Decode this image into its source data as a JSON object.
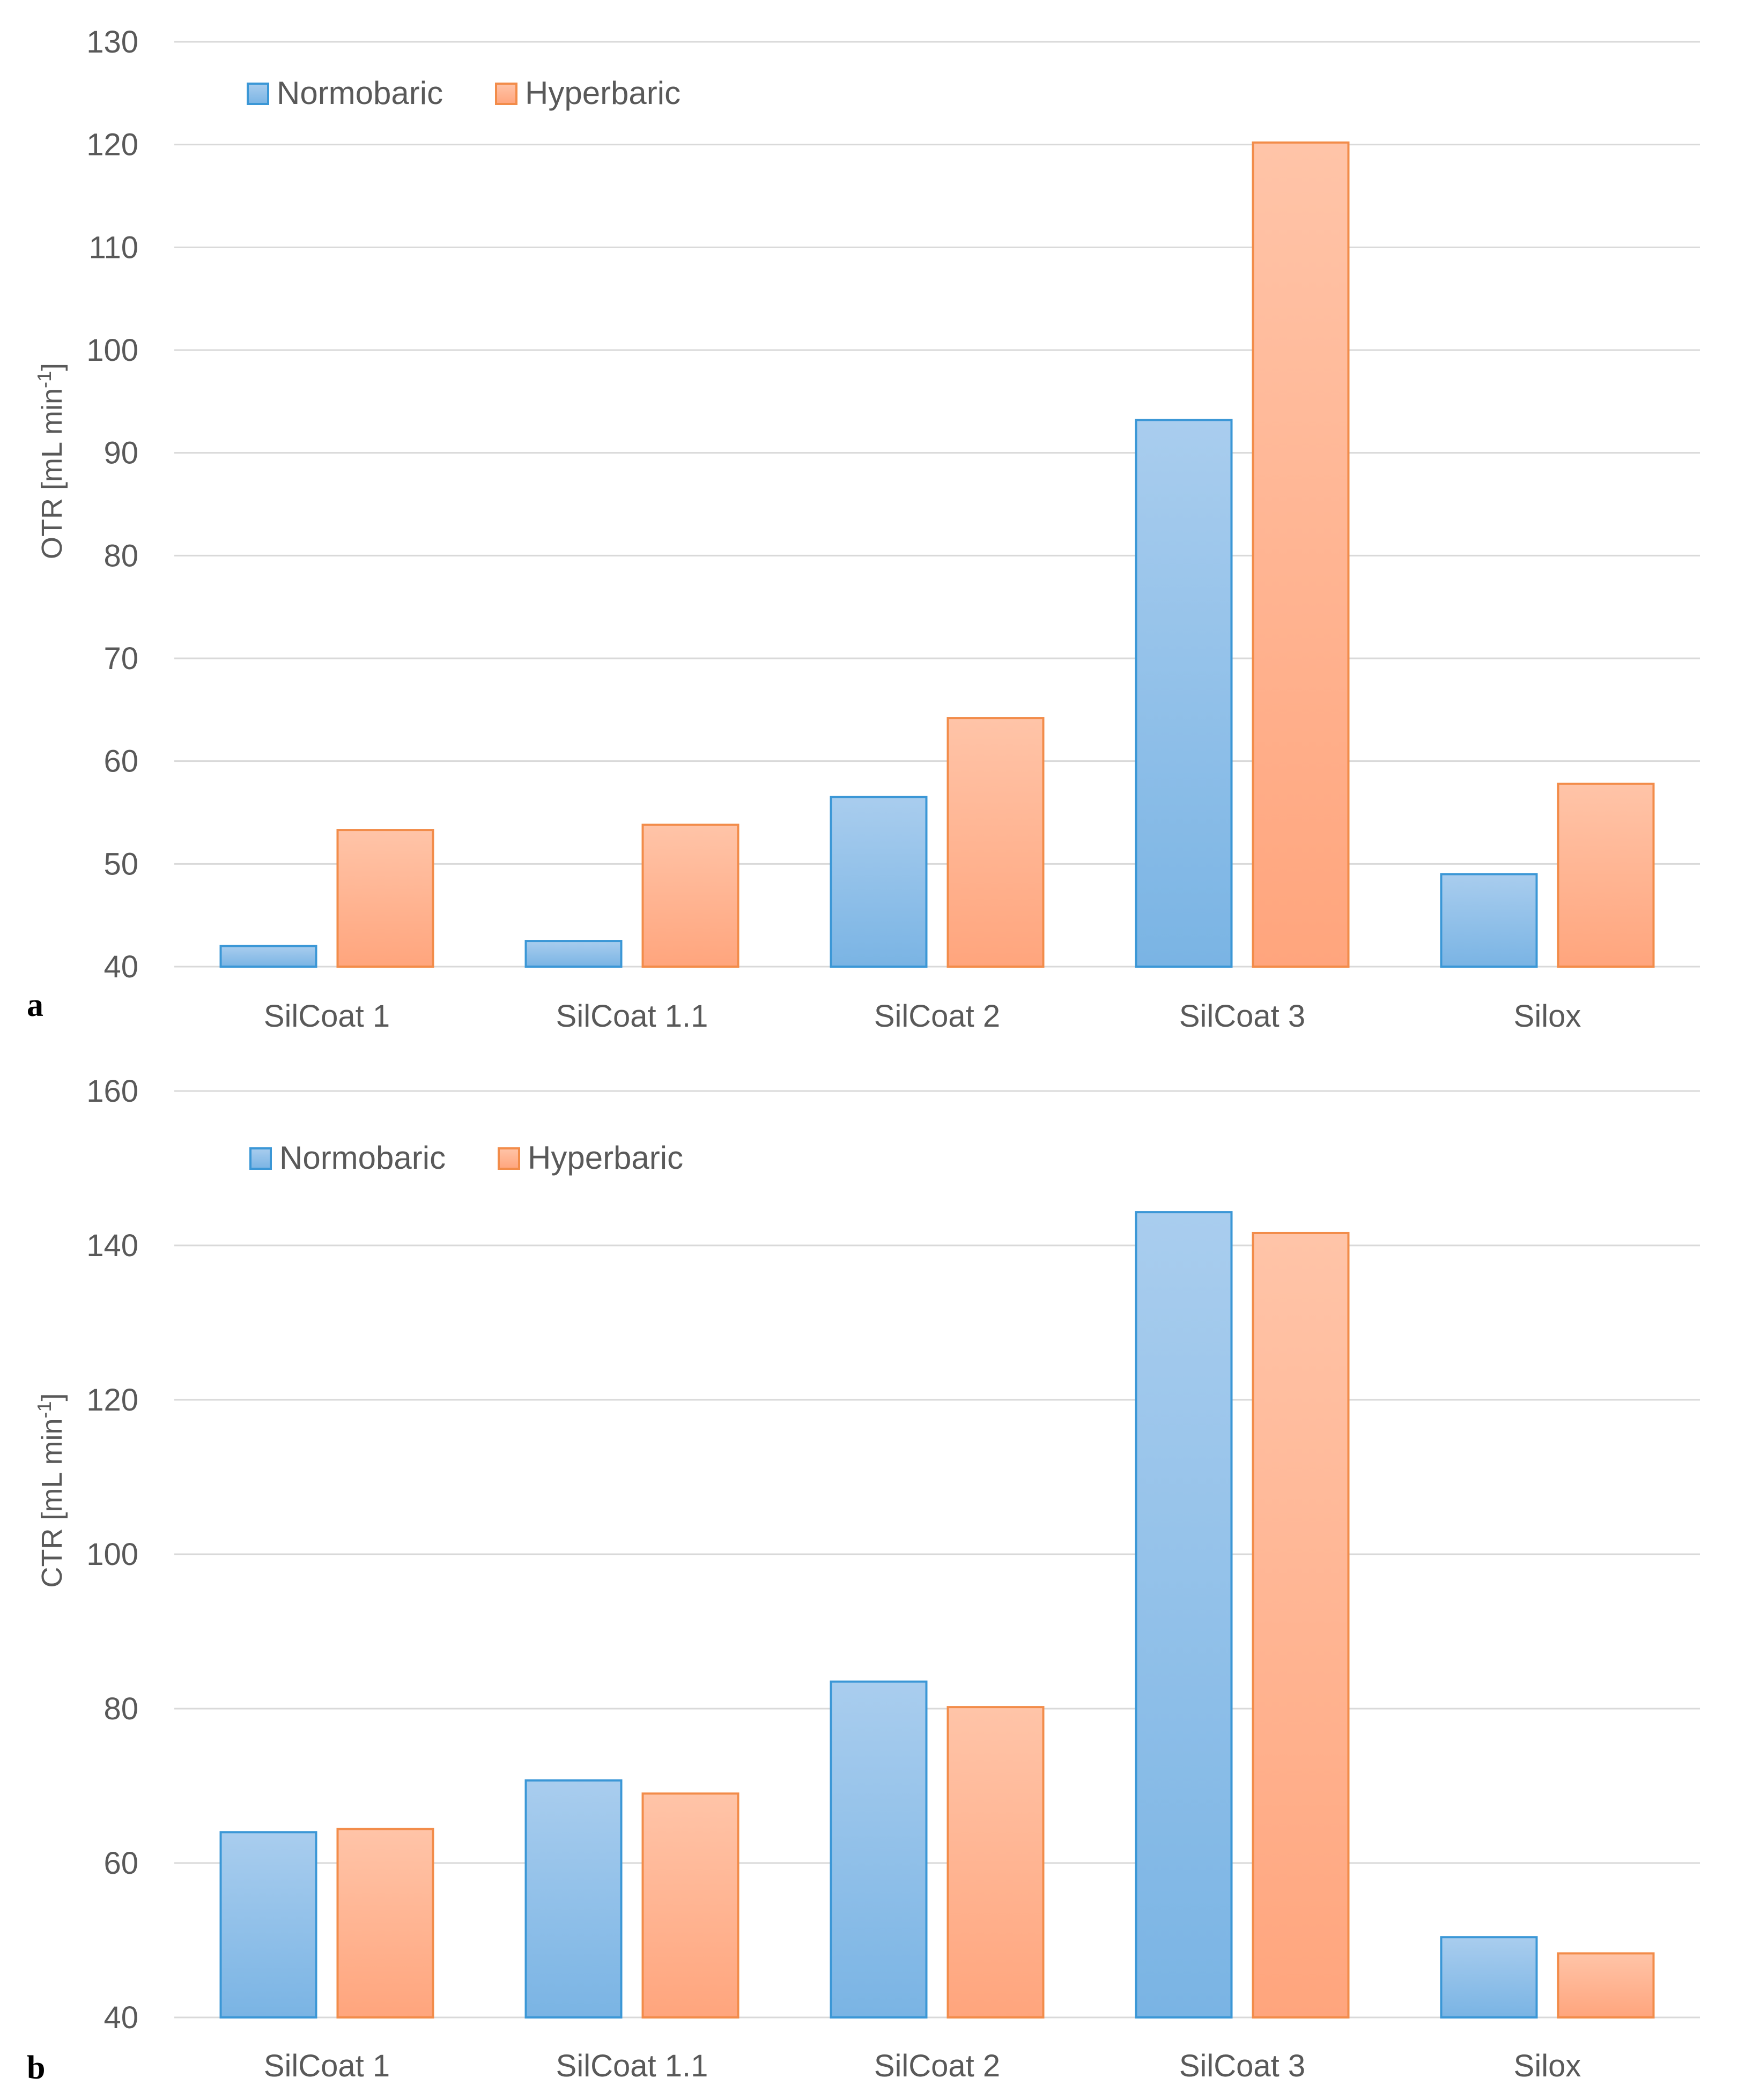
{
  "colors": {
    "normobaric_top": "#a9cdee",
    "normobaric_bottom": "#7ab4e4",
    "normobaric_edge": "#3b97d6",
    "hyperbaric_top": "#ffc4a8",
    "hyperbaric_bottom": "#ffa57d",
    "hyperbaric_edge": "#f28c4a"
  },
  "chart_data": [
    {
      "type": "bar",
      "panel_label": "a",
      "categories": [
        "SilCoat 1",
        "SilCoat 1.1",
        "SilCoat 2",
        "SilCoat 3",
        "Silox"
      ],
      "series": [
        {
          "name": "Normobaric",
          "values": [
            42,
            42.5,
            56.5,
            93.2,
            49
          ]
        },
        {
          "name": "Hyperbaric",
          "values": [
            53.3,
            53.8,
            64.2,
            120.2,
            57.8
          ]
        }
      ],
      "ylabel": "OTR [mL min",
      "ylabel_sup": "-1",
      "ylabel_close": "]",
      "ylim": [
        40,
        130
      ],
      "yticks": [
        40,
        50,
        60,
        70,
        80,
        90,
        100,
        110,
        120,
        130
      ],
      "grid": true,
      "legend": "top-left"
    },
    {
      "type": "bar",
      "panel_label": "b",
      "categories": [
        "SilCoat 1",
        "SilCoat 1.1",
        "SilCoat 2",
        "SilCoat 3",
        "Silox"
      ],
      "series": [
        {
          "name": "Normobaric",
          "values": [
            64,
            70.7,
            83.5,
            144.3,
            50.4
          ]
        },
        {
          "name": "Hyperbaric",
          "values": [
            64.4,
            69,
            80.2,
            141.6,
            48.3
          ]
        }
      ],
      "ylabel": "CTR [mL min",
      "ylabel_sup": "-1",
      "ylabel_close": "]",
      "ylim": [
        40,
        160
      ],
      "yticks": [
        40,
        60,
        80,
        100,
        120,
        140,
        160
      ],
      "grid": true,
      "legend": "top-left"
    }
  ]
}
